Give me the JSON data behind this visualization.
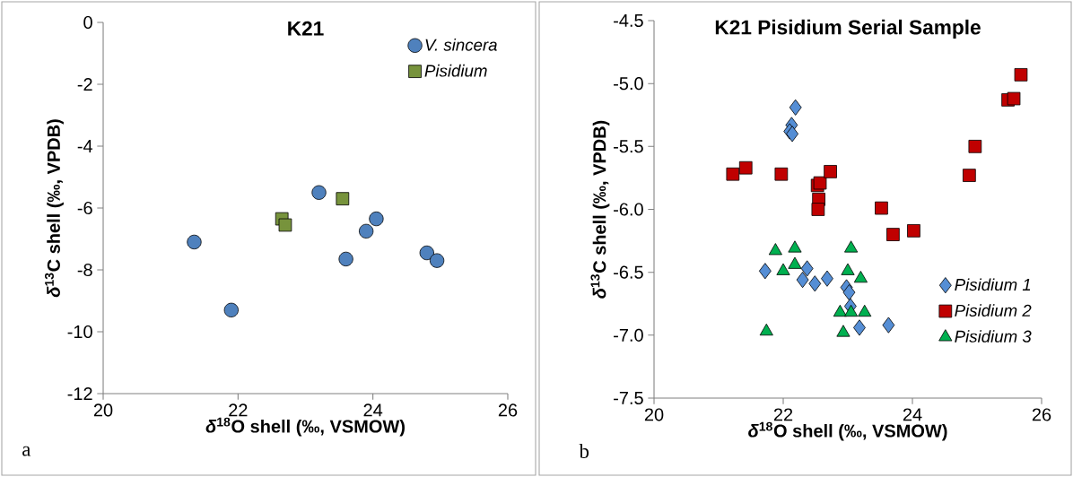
{
  "chart_data": [
    {
      "type": "scatter",
      "title": "K21",
      "xlabel": "*δ*$^{18}$O shell (‰, VSMOW)",
      "ylabel": "*δ*$^{13}$C shell  (‰, VPDB)",
      "xlim": [
        20,
        26
      ],
      "xticks": [
        20,
        22,
        24,
        26
      ],
      "ylim": [
        -12,
        0
      ],
      "yticks": [
        -12,
        -10,
        -8,
        -6,
        -4,
        -2,
        0
      ],
      "legend": "top right",
      "annotations": [
        "a"
      ],
      "series": [
        {
          "name": "V. sincera",
          "color": "#4f81bd",
          "marker": "circle",
          "x": [
            21.35,
            21.9,
            23.2,
            23.6,
            23.9,
            24.05,
            24.8,
            24.95
          ],
          "values": [
            -7.1,
            -9.3,
            -5.5,
            -7.65,
            -6.75,
            -6.35,
            -7.45,
            -7.7
          ]
        },
        {
          "name": "Pisidium",
          "color": "#77933c",
          "marker": "square",
          "x": [
            22.65,
            22.7,
            23.55
          ],
          "values": [
            -6.35,
            -6.55,
            -5.7
          ]
        }
      ]
    },
    {
      "type": "scatter",
      "title": "K21 Pisidium Serial Sample",
      "xlabel": "*δ*$^{18}$O shell  (‰, VSMOW)",
      "ylabel": "*δ*$^{13}$C shell  (‰, VPDB)",
      "xlim": [
        20,
        26
      ],
      "xticks": [
        20,
        22,
        24,
        26
      ],
      "ylim": [
        -7.5,
        -4.5
      ],
      "yticks": [
        {
          "value": -7.5,
          "label": "-7.5"
        },
        {
          "value": -7,
          "label": "-7.0"
        },
        {
          "value": -6.5,
          "label": "-6.5"
        },
        {
          "value": -6,
          "label": "-6.0"
        },
        {
          "value": -5.5,
          "label": "-5.5"
        },
        {
          "value": -5,
          "label": "-5.0"
        },
        {
          "value": -4.5,
          "label": "-4.5"
        }
      ],
      "legend": "bottom right",
      "annotations": [
        "b"
      ],
      "series": [
        {
          "name": "Pisidium 1",
          "color": "#558ed5",
          "marker": "diamond",
          "x": [
            22.19,
            22.13,
            22.1,
            22.14,
            21.72,
            22.37,
            22.3,
            22.49,
            22.68,
            22.98,
            23.02,
            23.04,
            23.18,
            23.63
          ],
          "values": [
            -5.19,
            -5.33,
            -5.38,
            -5.4,
            -6.49,
            -6.47,
            -6.56,
            -6.59,
            -6.55,
            -6.62,
            -6.66,
            -6.77,
            -6.94,
            -6.92
          ]
        },
        {
          "name": "Pisidium 2",
          "color": "#c00000",
          "marker": "square",
          "x": [
            21.22,
            21.42,
            21.97,
            22.53,
            22.57,
            22.55,
            22.54,
            22.73,
            23.52,
            23.7,
            24.02,
            24.88,
            24.97,
            25.48,
            25.57,
            25.68
          ],
          "values": [
            -5.72,
            -5.67,
            -5.72,
            -5.81,
            -5.79,
            -5.92,
            -6.0,
            -5.7,
            -5.99,
            -6.2,
            -6.17,
            -5.73,
            -5.5,
            -5.13,
            -5.12,
            -4.93
          ]
        },
        {
          "name": "Pisidium 3",
          "color": "#00b050",
          "marker": "triangle",
          "x": [
            21.88,
            22.18,
            22.0,
            22.18,
            23.05,
            23.0,
            23.2,
            22.88,
            23.05,
            23.26,
            22.93,
            21.74
          ],
          "values": [
            -6.33,
            -6.31,
            -6.49,
            -6.44,
            -6.31,
            -6.49,
            -6.55,
            -6.82,
            -6.82,
            -6.82,
            -6.98,
            -6.97
          ]
        }
      ]
    }
  ]
}
